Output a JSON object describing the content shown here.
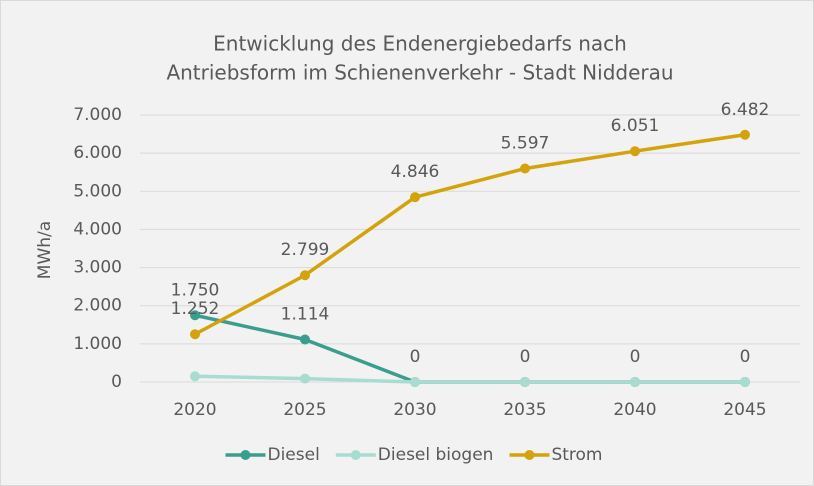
{
  "chart_data": {
    "type": "line",
    "title": [
      "Entwicklung des Endenergiebedarfs nach",
      "Antriebsform im Schienenverkehr - Stadt Nidderau"
    ],
    "ylabel": "MWh/a",
    "categories": [
      "2020",
      "2025",
      "2030",
      "2035",
      "2040",
      "2045"
    ],
    "series": [
      {
        "name": "Diesel",
        "color": "#3a9e8f",
        "values": [
          1750,
          1114,
          0,
          0,
          0,
          0
        ],
        "value_labels": [
          "1.750",
          "1.114",
          "0",
          "0",
          "0",
          "0"
        ]
      },
      {
        "name": "Diesel biogen",
        "color": "#a8dcd1",
        "values": [
          150,
          90,
          0,
          0,
          0,
          0
        ]
      },
      {
        "name": "Strom",
        "color": "#d4a20a",
        "values": [
          1252,
          2799,
          4846,
          5597,
          6051,
          6482
        ],
        "value_labels": [
          "1.252",
          "2.799",
          "4.846",
          "5.597",
          "6.051",
          "6.482"
        ]
      }
    ],
    "ylim": [
      0,
      7000
    ],
    "yticks": [
      0,
      {
        "value": 1000,
        "label": "1.000"
      },
      {
        "value": 2000,
        "label": "2.000"
      },
      {
        "value": 3000,
        "label": "3.000"
      },
      {
        "value": 4000,
        "label": "4.000"
      },
      {
        "value": 5000,
        "label": "5.000"
      },
      {
        "value": 6000,
        "label": "6.000"
      },
      {
        "value": 7000,
        "label": "7.000"
      }
    ],
    "grid": true,
    "legend": "bottom"
  }
}
